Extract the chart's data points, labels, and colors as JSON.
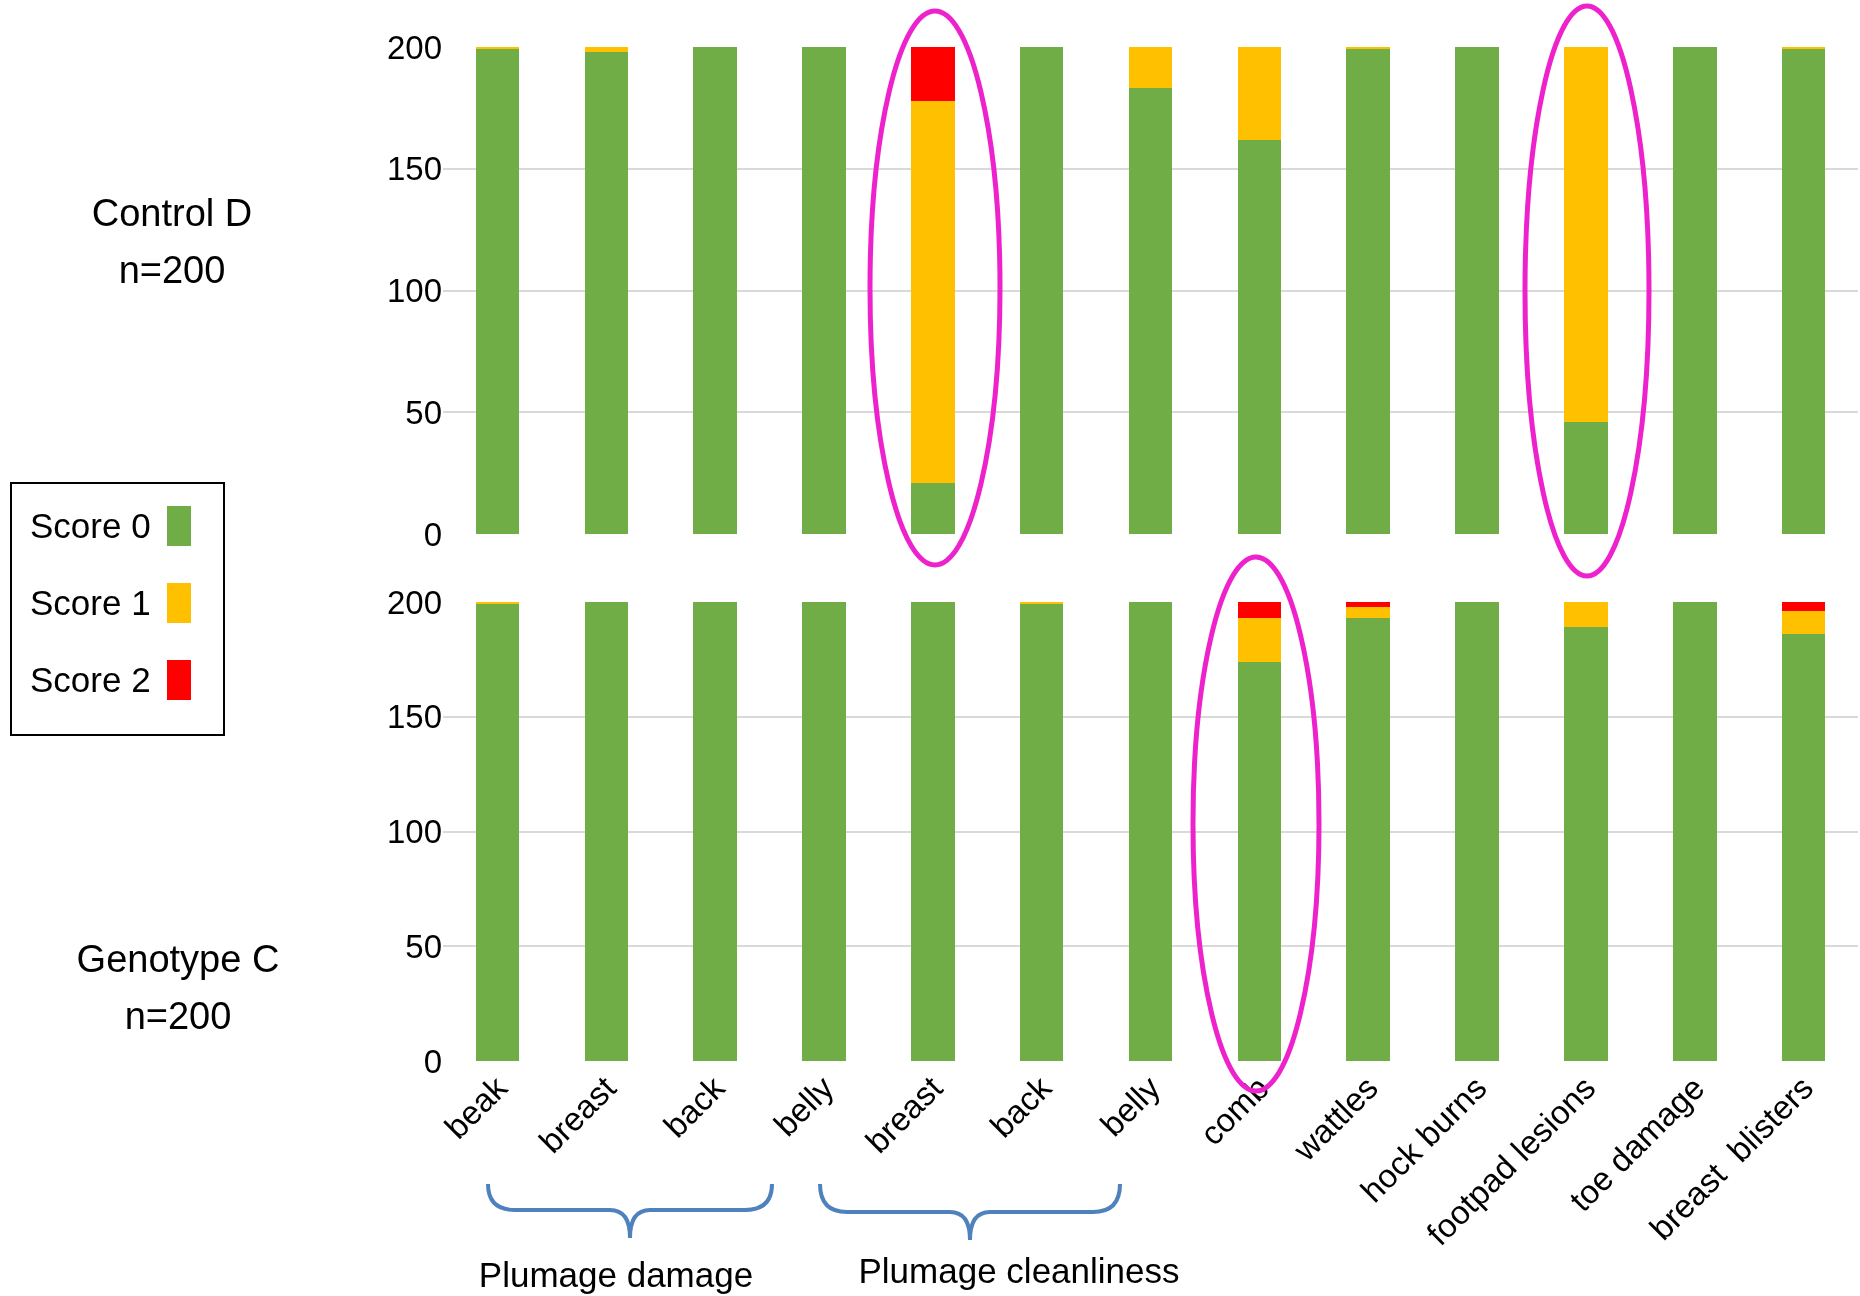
{
  "chart_data": [
    {
      "type": "bar",
      "stacked": true,
      "categories": [
        null,
        null,
        null,
        null,
        null,
        null,
        null,
        null,
        null,
        null,
        null,
        null,
        null
      ],
      "series": [
        {
          "name": "Score 0",
          "color": "#70ad47",
          "values": [
            199,
            198,
            200,
            200,
            21,
            200,
            183,
            162,
            199,
            200,
            46,
            200,
            199
          ]
        },
        {
          "name": "Score 1",
          "color": "#ffc000",
          "values": [
            1,
            2,
            0,
            0,
            157,
            0,
            17,
            38,
            1,
            0,
            154,
            0,
            1
          ]
        },
        {
          "name": "Score 2",
          "color": "#ff0000",
          "values": [
            0,
            0,
            0,
            0,
            22,
            0,
            0,
            0,
            0,
            0,
            0,
            0,
            0
          ]
        }
      ],
      "ylim": [
        0,
        200
      ],
      "yticks": [
        0,
        50,
        100,
        150,
        200
      ],
      "grid": "y",
      "legend": "left",
      "tick_labels": "y",
      "annotations": [
        "Control D\nn=200"
      ]
    },
    {
      "type": "bar",
      "stacked": true,
      "categories": [
        "beak",
        "breast",
        "back",
        "belly",
        "breast",
        "back",
        "belly",
        "comb",
        "wattles",
        "hock burns",
        "footpad lesions",
        "toe damage",
        "breast  blisters"
      ],
      "series": [
        {
          "color": "#70ad47",
          "values": [
            199,
            200,
            200,
            200,
            200,
            199,
            200,
            174,
            193,
            200,
            189,
            200,
            186
          ]
        },
        {
          "color": "#ffc000",
          "values": [
            1,
            0,
            0,
            0,
            0,
            1,
            0,
            19,
            5,
            0,
            11,
            0,
            10
          ]
        },
        {
          "color": "#ff0000",
          "values": [
            0,
            0,
            0,
            0,
            0,
            0,
            0,
            7,
            2,
            0,
            0,
            0,
            4
          ]
        }
      ],
      "ylim": [
        0,
        200
      ],
      "yticks": [
        0,
        50,
        100,
        150,
        200
      ],
      "grid": "y",
      "annotations": [
        "Genotype C\nn=200",
        "Plumage damage",
        "Plumage cleanliness"
      ]
    }
  ]
}
